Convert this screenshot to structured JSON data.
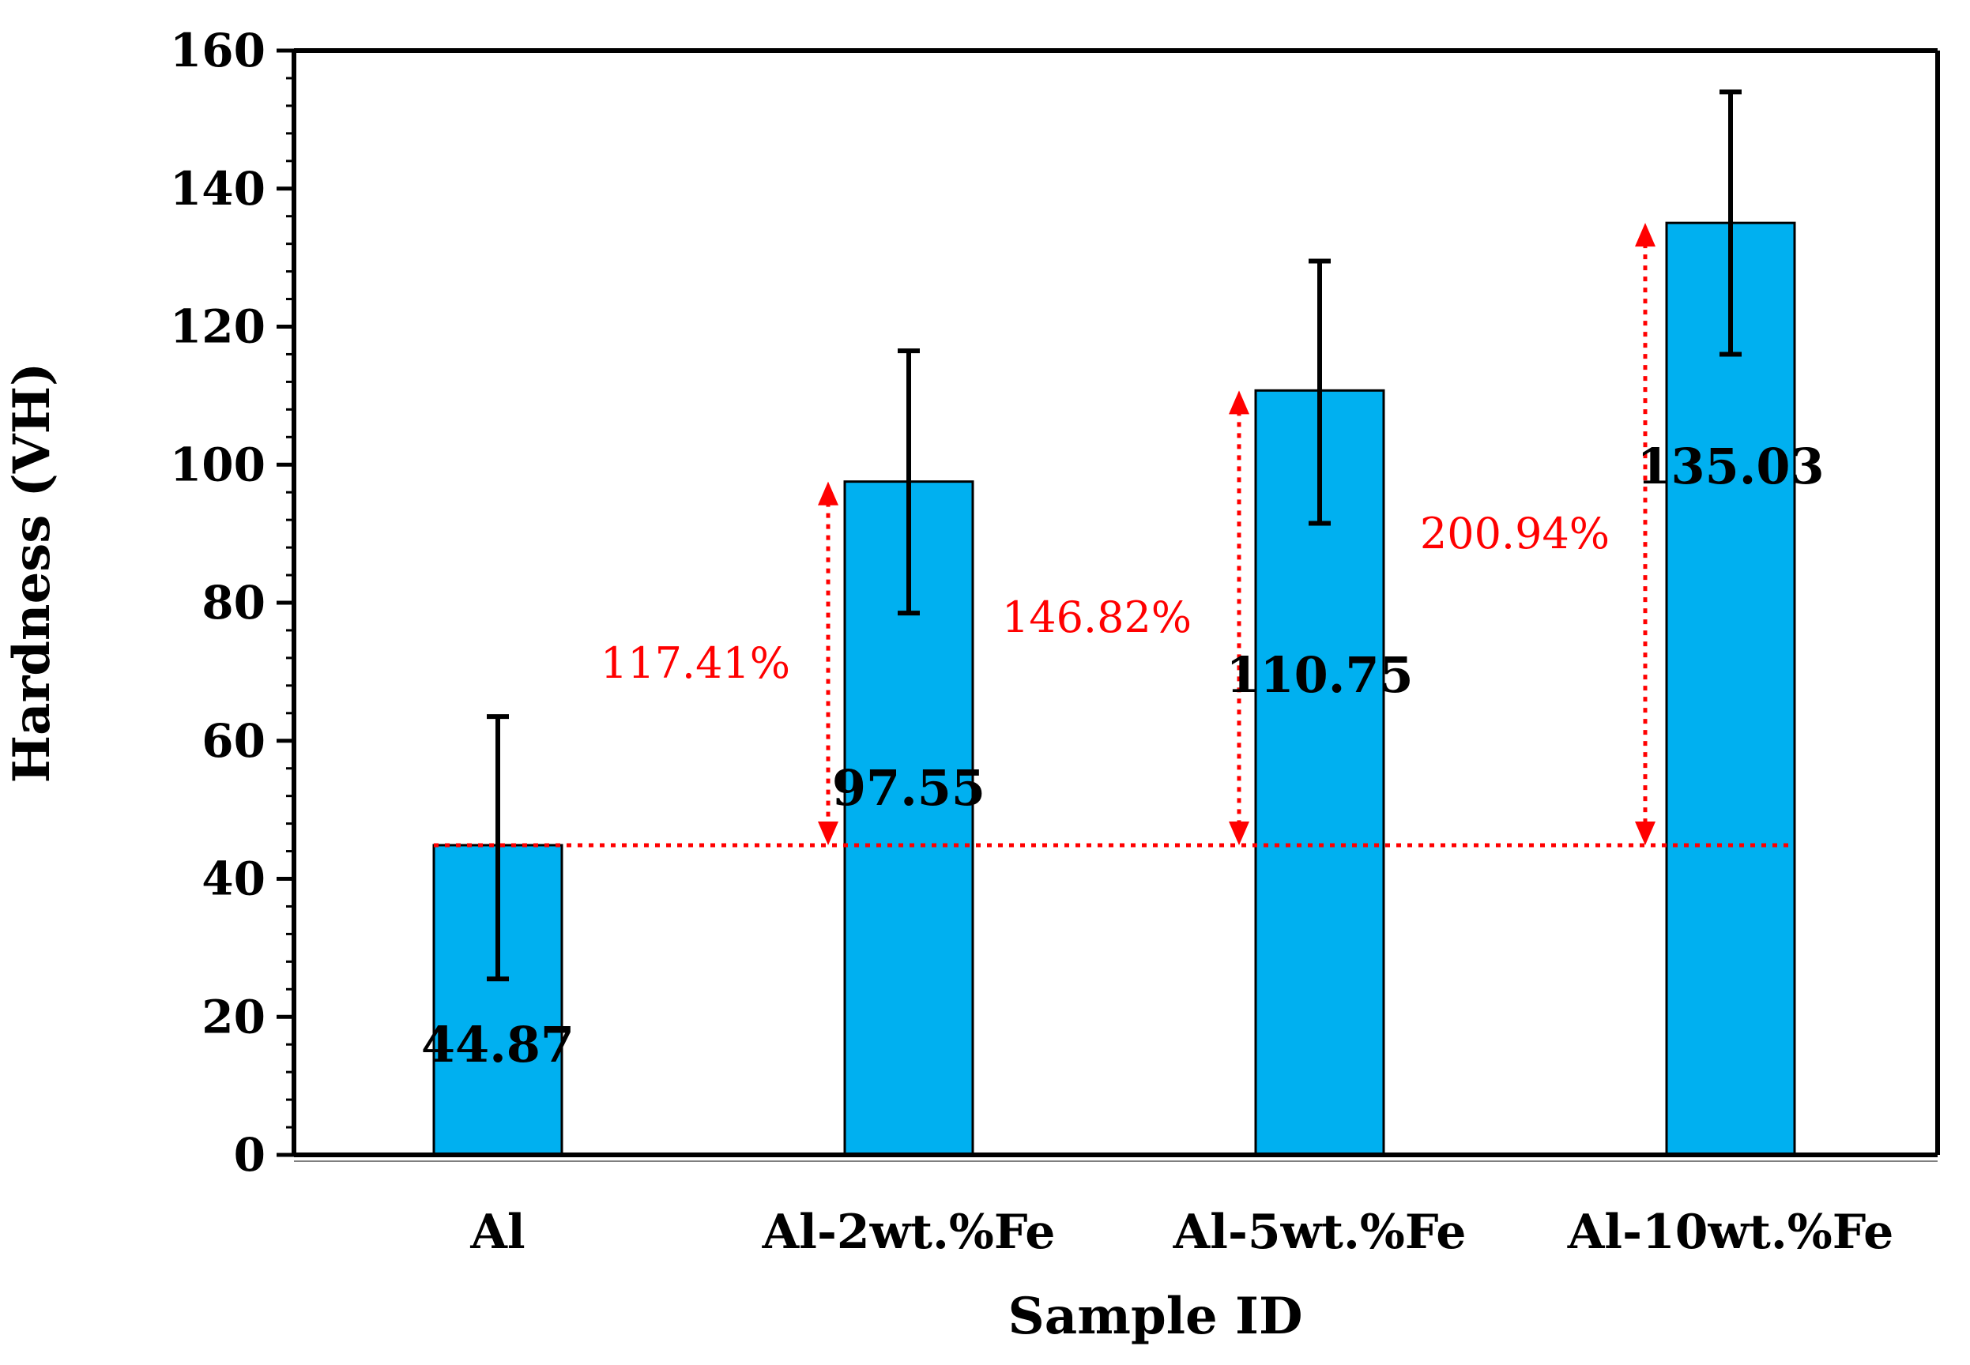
{
  "chart_data": {
    "type": "bar",
    "title": "",
    "xlabel": "Sample ID",
    "ylabel": "Hardness (VH)",
    "ylim": [
      0,
      160
    ],
    "yticks": [
      0,
      20,
      40,
      60,
      80,
      100,
      120,
      140,
      160
    ],
    "y_minor_step": 4,
    "grid": false,
    "categories": [
      "Al",
      "Al-2wt.%Fe",
      "Al-5wt.%Fe",
      "Al-10wt.%Fe"
    ],
    "values": [
      44.87,
      97.55,
      110.75,
      135.03
    ],
    "value_labels": [
      "44.87",
      "97.55",
      "110.75",
      "135.03"
    ],
    "error_low": [
      25.5,
      78.5,
      91.5,
      116.0
    ],
    "error_high": [
      63.5,
      116.5,
      129.5,
      154.0
    ],
    "bar_color": "#00b0f0",
    "baseline": {
      "value": 44.87,
      "style": "dotted",
      "color": "#ff0000"
    },
    "increase_annotations": [
      {
        "category": "Al-2wt.%Fe",
        "from": 44.87,
        "to": 97.55,
        "label": "117.41%"
      },
      {
        "category": "Al-5wt.%Fe",
        "from": 44.87,
        "to": 110.75,
        "label": "146.82%"
      },
      {
        "category": "Al-10wt.%Fe",
        "from": 44.87,
        "to": 135.03,
        "label": "200.94%"
      }
    ],
    "annotation_color": "#ff0000"
  }
}
